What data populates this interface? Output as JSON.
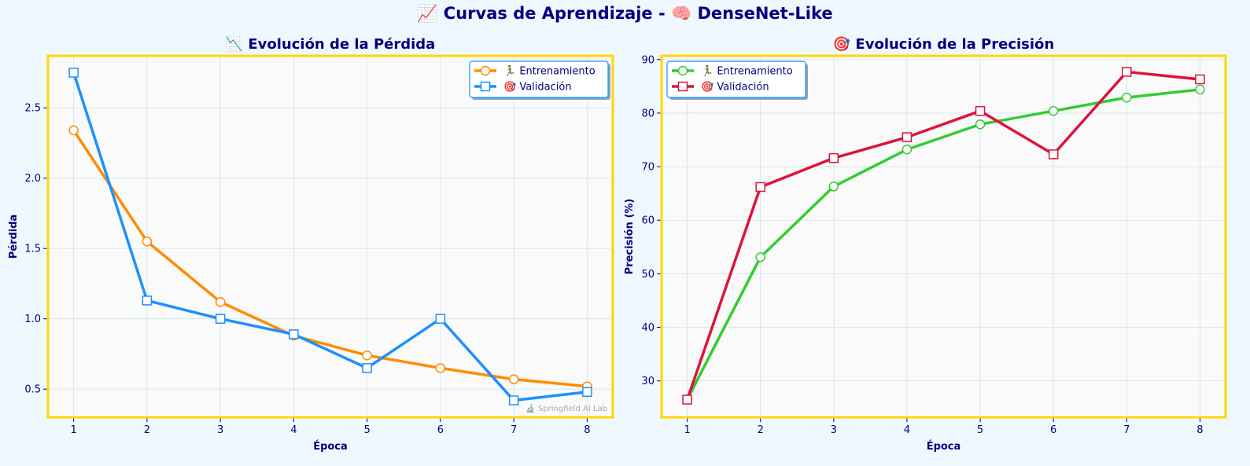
{
  "suptitle": "📈 Curvas de Aprendizaje - 🧠 DenseNet-Like",
  "watermark": "🔬 Springfield AI Lab",
  "colors": {
    "background": "#f0f8ff",
    "plot_background": "#fafafa",
    "frame": "#ffd700",
    "text": "#000080",
    "grid": "#add8e6"
  },
  "chart_data": [
    {
      "type": "line",
      "title": "📉 Evolución de la Pérdida",
      "xlabel": "Época",
      "ylabel": "Pérdida",
      "x": [
        1,
        2,
        3,
        4,
        5,
        6,
        7,
        8
      ],
      "xlim": [
        0.65,
        8.35
      ],
      "ylim": [
        0.3,
        2.87
      ],
      "yticks": [
        0.5,
        1.0,
        1.5,
        2.0,
        2.5
      ],
      "ytick_labels": [
        "0.5",
        "1.0",
        "1.5",
        "2.0",
        "2.5"
      ],
      "grid": true,
      "legend_position": "upper right",
      "series": [
        {
          "name": "🏃‍♂️ Entrenamiento",
          "color": "#ff8c00",
          "marker": "circle",
          "values": [
            2.34,
            1.55,
            1.12,
            0.88,
            0.74,
            0.65,
            0.57,
            0.52
          ]
        },
        {
          "name": "🎯 Validación",
          "color": "#1e90ff",
          "marker": "square",
          "values": [
            2.75,
            1.13,
            1.0,
            0.89,
            0.65,
            1.0,
            0.42,
            0.48
          ]
        }
      ]
    },
    {
      "type": "line",
      "title": "🎯 Evolución de la Precisión",
      "xlabel": "Época",
      "ylabel": "Precisión (%)",
      "x": [
        1,
        2,
        3,
        4,
        5,
        6,
        7,
        8
      ],
      "xlim": [
        0.65,
        8.35
      ],
      "ylim": [
        23.2,
        90.7
      ],
      "yticks": [
        30,
        40,
        50,
        60,
        70,
        80,
        90
      ],
      "ytick_labels": [
        "30",
        "40",
        "50",
        "60",
        "70",
        "80",
        "90"
      ],
      "grid": true,
      "legend_position": "upper left",
      "series": [
        {
          "name": "🏃‍♂️ Entrenamiento",
          "color": "#32cd32",
          "marker": "circle",
          "values": [
            26.5,
            53.1,
            66.3,
            73.2,
            77.9,
            80.4,
            82.9,
            84.4
          ]
        },
        {
          "name": "🎯 Validación",
          "color": "#dc143c",
          "marker": "square",
          "values": [
            26.5,
            66.2,
            71.6,
            75.5,
            80.4,
            72.3,
            87.7,
            86.3
          ]
        }
      ]
    }
  ]
}
